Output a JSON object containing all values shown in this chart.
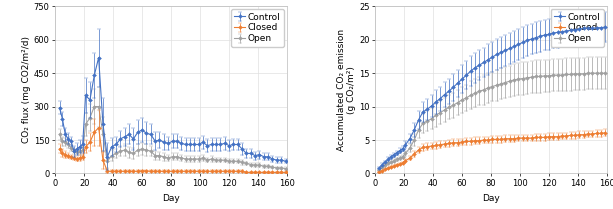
{
  "left": {
    "xlabel": "Day",
    "ylabel": "CO₂ flux (mg CO2/m²/d)",
    "xlim": [
      0,
      160
    ],
    "ylim": [
      0,
      750
    ],
    "yticks": [
      0,
      150,
      300,
      450,
      600,
      750
    ],
    "xticks": [
      0,
      20,
      40,
      60,
      80,
      100,
      120,
      140,
      160
    ],
    "control_color": "#4472C4",
    "closed_color": "#ED7D31",
    "open_color": "#A0A0A0",
    "control_x": [
      3,
      5,
      7,
      9,
      11,
      13,
      15,
      17,
      19,
      21,
      24,
      27,
      30,
      33,
      36,
      39,
      42,
      45,
      48,
      51,
      54,
      57,
      60,
      63,
      66,
      69,
      72,
      75,
      78,
      81,
      84,
      87,
      90,
      93,
      96,
      99,
      102,
      105,
      108,
      111,
      114,
      117,
      120,
      123,
      126,
      129,
      132,
      135,
      138,
      141,
      144,
      147,
      150,
      153,
      156,
      159
    ],
    "control_y": [
      295,
      245,
      175,
      155,
      145,
      100,
      110,
      120,
      130,
      350,
      330,
      440,
      520,
      220,
      75,
      120,
      130,
      155,
      165,
      175,
      155,
      185,
      195,
      180,
      175,
      145,
      150,
      140,
      135,
      145,
      145,
      135,
      130,
      130,
      130,
      130,
      140,
      125,
      130,
      130,
      130,
      135,
      125,
      130,
      130,
      110,
      90,
      90,
      80,
      85,
      75,
      75,
      65,
      60,
      60,
      55
    ],
    "control_err": [
      30,
      30,
      30,
      25,
      20,
      25,
      25,
      30,
      40,
      80,
      80,
      100,
      130,
      120,
      60,
      40,
      35,
      35,
      40,
      45,
      50,
      55,
      55,
      50,
      45,
      40,
      35,
      35,
      30,
      30,
      30,
      30,
      30,
      28,
      28,
      28,
      30,
      28,
      28,
      28,
      28,
      28,
      25,
      25,
      25,
      25,
      20,
      20,
      18,
      18,
      15,
      15,
      12,
      12,
      12,
      10
    ],
    "closed_x": [
      3,
      5,
      7,
      9,
      11,
      13,
      15,
      17,
      19,
      21,
      24,
      27,
      30,
      33,
      36,
      39,
      42,
      45,
      48,
      51,
      54,
      57,
      60,
      63,
      66,
      69,
      72,
      75,
      78,
      81,
      84,
      87,
      90,
      93,
      96,
      99,
      102,
      105,
      108,
      111,
      114,
      117,
      120,
      123,
      126,
      129,
      132,
      135,
      138,
      141,
      144,
      147,
      150,
      153,
      156,
      159
    ],
    "closed_y": [
      110,
      90,
      85,
      80,
      75,
      70,
      65,
      70,
      75,
      120,
      140,
      185,
      205,
      60,
      10,
      10,
      10,
      10,
      10,
      10,
      10,
      10,
      12,
      12,
      10,
      10,
      10,
      10,
      10,
      10,
      10,
      10,
      10,
      10,
      10,
      10,
      10,
      10,
      10,
      10,
      10,
      10,
      10,
      10,
      10,
      10,
      5,
      5,
      5,
      5,
      5,
      5,
      5,
      5,
      5,
      5
    ],
    "closed_err": [
      20,
      18,
      15,
      12,
      10,
      10,
      10,
      12,
      15,
      30,
      40,
      60,
      80,
      40,
      8,
      5,
      5,
      5,
      5,
      5,
      5,
      5,
      5,
      5,
      5,
      5,
      5,
      5,
      5,
      5,
      5,
      5,
      5,
      5,
      5,
      5,
      5,
      5,
      5,
      5,
      5,
      5,
      5,
      5,
      5,
      5,
      3,
      3,
      3,
      3,
      3,
      3,
      3,
      3,
      3,
      3
    ],
    "open_x": [
      3,
      5,
      7,
      9,
      11,
      13,
      15,
      17,
      19,
      21,
      24,
      27,
      30,
      33,
      36,
      39,
      42,
      45,
      48,
      51,
      54,
      57,
      60,
      63,
      66,
      69,
      72,
      75,
      78,
      81,
      84,
      87,
      90,
      93,
      96,
      99,
      102,
      105,
      108,
      111,
      114,
      117,
      120,
      123,
      126,
      129,
      132,
      135,
      138,
      141,
      144,
      147,
      150,
      153,
      156,
      159
    ],
    "open_y": [
      175,
      145,
      140,
      130,
      115,
      100,
      95,
      100,
      105,
      220,
      250,
      300,
      300,
      175,
      55,
      80,
      90,
      100,
      105,
      95,
      90,
      105,
      110,
      105,
      100,
      80,
      80,
      75,
      70,
      75,
      75,
      70,
      65,
      65,
      65,
      65,
      70,
      60,
      65,
      60,
      60,
      60,
      55,
      55,
      55,
      50,
      45,
      40,
      38,
      38,
      32,
      32,
      28,
      25,
      25,
      22
    ],
    "open_err": [
      25,
      20,
      18,
      15,
      12,
      12,
      12,
      15,
      20,
      50,
      60,
      80,
      90,
      80,
      30,
      25,
      20,
      22,
      25,
      25,
      25,
      25,
      28,
      25,
      22,
      20,
      18,
      18,
      15,
      15,
      15,
      12,
      12,
      12,
      12,
      12,
      12,
      10,
      12,
      10,
      10,
      10,
      10,
      10,
      10,
      10,
      8,
      8,
      8,
      8,
      6,
      6,
      5,
      5,
      5,
      5
    ]
  },
  "right": {
    "xlabel": "Day",
    "ylabel": "Accumulated CO₂ emission\n(g CO₂/m²)",
    "xlim": [
      0,
      160
    ],
    "ylim": [
      0,
      25
    ],
    "yticks": [
      0,
      5,
      10,
      15,
      20,
      25
    ],
    "xticks": [
      0,
      20,
      40,
      60,
      80,
      100,
      120,
      140,
      160
    ],
    "control_color": "#4472C4",
    "closed_color": "#ED7D31",
    "open_color": "#A0A0A0",
    "control_x": [
      3,
      5,
      7,
      9,
      11,
      13,
      15,
      17,
      19,
      21,
      24,
      27,
      30,
      33,
      36,
      39,
      42,
      45,
      48,
      51,
      54,
      57,
      60,
      63,
      66,
      69,
      72,
      75,
      78,
      81,
      84,
      87,
      90,
      93,
      96,
      99,
      102,
      105,
      108,
      111,
      114,
      117,
      120,
      123,
      126,
      129,
      132,
      135,
      138,
      141,
      144,
      147,
      150,
      153,
      156,
      159
    ],
    "control_y": [
      0.8,
      1.3,
      1.7,
      2.1,
      2.5,
      2.8,
      3.1,
      3.4,
      3.7,
      4.3,
      5.2,
      6.5,
      8.0,
      9.2,
      9.6,
      10.1,
      10.7,
      11.2,
      11.8,
      12.3,
      12.9,
      13.5,
      14.1,
      14.7,
      15.3,
      15.8,
      16.2,
      16.6,
      17.0,
      17.4,
      17.8,
      18.1,
      18.4,
      18.7,
      19.0,
      19.3,
      19.6,
      19.9,
      20.1,
      20.3,
      20.5,
      20.7,
      20.8,
      21.0,
      21.1,
      21.2,
      21.3,
      21.4,
      21.5,
      21.6,
      21.7,
      21.7,
      21.7,
      21.8,
      21.8,
      21.9
    ],
    "control_err": [
      0.1,
      0.2,
      0.2,
      0.3,
      0.3,
      0.3,
      0.3,
      0.4,
      0.4,
      0.5,
      0.7,
      1.0,
      1.3,
      1.5,
      1.6,
      1.7,
      1.8,
      1.8,
      1.9,
      1.9,
      2.0,
      2.0,
      2.1,
      2.1,
      2.2,
      2.2,
      2.2,
      2.2,
      2.3,
      2.3,
      2.3,
      2.3,
      2.3,
      2.3,
      2.3,
      2.3,
      2.3,
      2.3,
      2.3,
      2.3,
      2.3,
      2.3,
      2.3,
      2.3,
      2.3,
      2.3,
      2.3,
      2.3,
      2.3,
      2.3,
      2.3,
      2.3,
      2.3,
      2.3,
      2.3,
      2.3
    ],
    "closed_x": [
      3,
      5,
      7,
      9,
      11,
      13,
      15,
      17,
      19,
      21,
      24,
      27,
      30,
      33,
      36,
      39,
      42,
      45,
      48,
      51,
      54,
      57,
      60,
      63,
      66,
      69,
      72,
      75,
      78,
      81,
      84,
      87,
      90,
      93,
      96,
      99,
      102,
      105,
      108,
      111,
      114,
      117,
      120,
      123,
      126,
      129,
      132,
      135,
      138,
      141,
      144,
      147,
      150,
      153,
      156,
      159
    ],
    "closed_y": [
      0.2,
      0.4,
      0.6,
      0.8,
      1.0,
      1.1,
      1.3,
      1.4,
      1.6,
      1.9,
      2.3,
      2.9,
      3.5,
      3.9,
      4.0,
      4.1,
      4.2,
      4.3,
      4.4,
      4.5,
      4.6,
      4.6,
      4.7,
      4.8,
      4.8,
      4.9,
      4.9,
      5.0,
      5.0,
      5.1,
      5.1,
      5.1,
      5.2,
      5.2,
      5.2,
      5.3,
      5.3,
      5.3,
      5.3,
      5.4,
      5.4,
      5.4,
      5.5,
      5.5,
      5.5,
      5.6,
      5.6,
      5.7,
      5.7,
      5.8,
      5.8,
      5.9,
      5.9,
      6.0,
      6.0,
      6.1
    ],
    "closed_err": [
      0.05,
      0.07,
      0.08,
      0.09,
      0.1,
      0.1,
      0.1,
      0.1,
      0.15,
      0.2,
      0.3,
      0.4,
      0.5,
      0.5,
      0.5,
      0.5,
      0.5,
      0.5,
      0.5,
      0.5,
      0.5,
      0.5,
      0.5,
      0.5,
      0.5,
      0.5,
      0.5,
      0.5,
      0.5,
      0.5,
      0.5,
      0.5,
      0.5,
      0.5,
      0.5,
      0.5,
      0.5,
      0.5,
      0.5,
      0.5,
      0.5,
      0.5,
      0.5,
      0.5,
      0.5,
      0.5,
      0.5,
      0.5,
      0.5,
      0.5,
      0.5,
      0.5,
      0.5,
      0.5,
      0.5,
      0.5
    ],
    "open_x": [
      3,
      5,
      7,
      9,
      11,
      13,
      15,
      17,
      19,
      21,
      24,
      27,
      30,
      33,
      36,
      39,
      42,
      45,
      48,
      51,
      54,
      57,
      60,
      63,
      66,
      69,
      72,
      75,
      78,
      81,
      84,
      87,
      90,
      93,
      96,
      99,
      102,
      105,
      108,
      111,
      114,
      117,
      120,
      123,
      126,
      129,
      132,
      135,
      138,
      141,
      144,
      147,
      150,
      153,
      156,
      159
    ],
    "open_y": [
      0.5,
      0.9,
      1.2,
      1.5,
      1.7,
      1.9,
      2.1,
      2.3,
      2.5,
      3.0,
      3.8,
      5.0,
      6.5,
      7.5,
      7.8,
      8.2,
      8.7,
      9.1,
      9.5,
      9.9,
      10.2,
      10.6,
      11.0,
      11.3,
      11.7,
      12.0,
      12.3,
      12.5,
      12.8,
      13.0,
      13.2,
      13.4,
      13.6,
      13.8,
      14.0,
      14.1,
      14.2,
      14.3,
      14.4,
      14.5,
      14.5,
      14.6,
      14.6,
      14.7,
      14.7,
      14.7,
      14.8,
      14.8,
      14.9,
      14.9,
      14.9,
      15.0,
      15.0,
      15.0,
      15.0,
      15.0
    ],
    "open_err": [
      0.05,
      0.1,
      0.12,
      0.15,
      0.18,
      0.2,
      0.22,
      0.25,
      0.28,
      0.4,
      0.6,
      0.9,
      1.2,
      1.4,
      1.5,
      1.6,
      1.7,
      1.7,
      1.8,
      1.8,
      1.9,
      1.9,
      2.0,
      2.0,
      2.1,
      2.1,
      2.1,
      2.2,
      2.2,
      2.2,
      2.3,
      2.3,
      2.3,
      2.3,
      2.4,
      2.4,
      2.4,
      2.4,
      2.4,
      2.4,
      2.4,
      2.4,
      2.4,
      2.4,
      2.4,
      2.4,
      2.4,
      2.4,
      2.4,
      2.4,
      2.4,
      2.4,
      2.4,
      2.4,
      2.4,
      2.4
    ]
  },
  "bg_color": "#FFFFFF",
  "grid_color": "#E0E0E0",
  "legend_fontsize": 6.5,
  "axis_fontsize": 6.5,
  "tick_fontsize": 6,
  "marker_size": 2.0,
  "line_width": 0.8,
  "capsize": 1.5,
  "elinewidth": 0.5,
  "marker": "D"
}
